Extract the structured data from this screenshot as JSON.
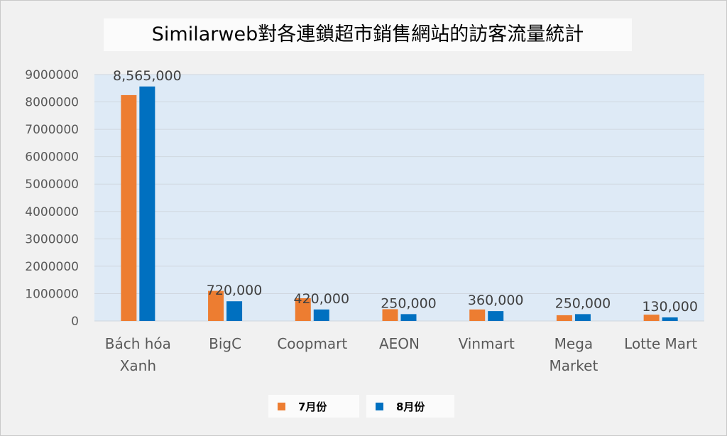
{
  "chart_data": {
    "type": "bar",
    "title": "Similarweb對各連鎖超市銷售網站的訪客流量統計",
    "categories": [
      "Bách hóa\nXanh",
      "BigC",
      "Coopmart",
      "AEON",
      "Vinmart",
      "Mega\nMarket",
      "Lotte Mart"
    ],
    "series": [
      {
        "name": "7月份",
        "color": "#ED7D31",
        "values": [
          8250000,
          1100000,
          830000,
          430000,
          420000,
          210000,
          230000
        ]
      },
      {
        "name": "8月份",
        "color": "#0070C0",
        "values": [
          8565000,
          720000,
          420000,
          250000,
          360000,
          250000,
          130000
        ]
      }
    ],
    "data_labels": [
      "8,565,000",
      "720,000",
      "420,000",
      "250,000",
      "360,000",
      "250,000",
      "130,000"
    ],
    "y_ticks": [
      "0",
      "1000000",
      "2000000",
      "3000000",
      "4000000",
      "5000000",
      "6000000",
      "7000000",
      "8000000",
      "9000000"
    ],
    "ylim": [
      0,
      9000000
    ],
    "grid": true,
    "legend_position": "bottom",
    "plot_background": "#DEEAF6"
  }
}
